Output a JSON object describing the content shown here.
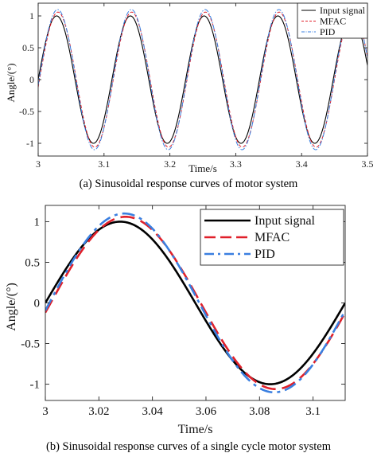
{
  "chart_data": [
    {
      "type": "line",
      "caption": "(a) Sinusoidal response curves of motor system",
      "xlabel": "Time/s",
      "ylabel": "Angle/(°)",
      "xlim": [
        3.0,
        3.5
      ],
      "ylim": [
        -1.2,
        1.2
      ],
      "x_ticks": [
        3.0,
        3.1,
        3.2,
        3.3,
        3.4,
        3.5
      ],
      "x_tick_labels": [
        "3",
        "3.1",
        "3.2",
        "3.3",
        "3.4",
        "3.5"
      ],
      "y_ticks": [
        -1,
        -0.5,
        0,
        0.5,
        1
      ],
      "y_tick_labels": [
        "-1",
        "-0.5",
        "0",
        "0.5",
        "1"
      ],
      "grid": false,
      "legend_position": "top-right",
      "series": [
        {
          "name": "Input signal",
          "color": "#000000",
          "style": "solid",
          "amplitude": 1.0,
          "phase_lag_s": 0.0,
          "period_s": 0.112,
          "x_start": 3.0,
          "x_end": 3.5
        },
        {
          "name": "MFAC",
          "color": "#e0202a",
          "style": "dashed",
          "amplitude": 1.06,
          "phase_lag_s": 0.002,
          "period_s": 0.112,
          "x_start": 3.0,
          "x_end": 3.5
        },
        {
          "name": "PID",
          "color": "#3a7fe0",
          "style": "dashdot",
          "amplitude": 1.1,
          "phase_lag_s": 0.0015,
          "period_s": 0.112,
          "x_start": 3.0,
          "x_end": 3.5
        }
      ]
    },
    {
      "type": "line",
      "caption": "(b) Sinusoidal response curves of a single cycle motor system",
      "xlabel": "Time/s",
      "ylabel": "Angle/(°)",
      "xlim": [
        3.0,
        3.112
      ],
      "ylim": [
        -1.2,
        1.2
      ],
      "x_ticks": [
        3.0,
        3.02,
        3.04,
        3.06,
        3.08,
        3.1
      ],
      "x_tick_labels": [
        "3",
        "3.02",
        "3.04",
        "3.06",
        "3.08",
        "3.1"
      ],
      "y_ticks": [
        -1,
        -0.5,
        0,
        0.5,
        1
      ],
      "y_tick_labels": [
        "-1",
        "-0.5",
        "0",
        "0.5",
        "1"
      ],
      "grid": false,
      "legend_position": "top-right",
      "series": [
        {
          "name": "Input signal",
          "color": "#000000",
          "style": "solid",
          "amplitude": 1.0,
          "phase_lag_s": 0.0,
          "period_s": 0.112,
          "x_start": 3.0,
          "x_end": 3.112
        },
        {
          "name": "MFAC",
          "color": "#e0202a",
          "style": "dashed",
          "amplitude": 1.06,
          "phase_lag_s": 0.002,
          "period_s": 0.112,
          "x_start": 3.0,
          "x_end": 3.112
        },
        {
          "name": "PID",
          "color": "#3a7fe0",
          "style": "dashdot",
          "amplitude": 1.1,
          "phase_lag_s": 0.0015,
          "period_s": 0.112,
          "x_start": 3.0,
          "x_end": 3.112
        }
      ]
    }
  ]
}
